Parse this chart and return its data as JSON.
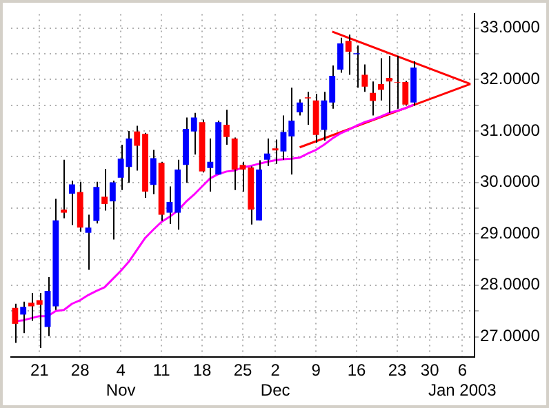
{
  "chart_data": {
    "type": "candlestick",
    "categories": [
      null,
      null,
      null,
      "21",
      null,
      null,
      null,
      null,
      "28",
      null,
      null,
      null,
      null,
      "4\nNov",
      null,
      null,
      null,
      null,
      "11",
      null,
      null,
      null,
      null,
      "18",
      null,
      null,
      null,
      null,
      "25",
      null,
      null,
      null,
      "2\nDec",
      null,
      null,
      null,
      null,
      "9",
      null,
      null,
      null,
      null,
      "16",
      null,
      null,
      null,
      null,
      "23",
      null,
      null,
      null,
      "30",
      null,
      null,
      null,
      "6\nJan 2003",
      null
    ],
    "ohlc": [
      [
        27.56,
        27.64,
        26.88,
        27.25
      ],
      [
        27.43,
        27.68,
        27.07,
        27.58
      ],
      [
        27.66,
        27.85,
        27.31,
        27.59
      ],
      [
        27.71,
        27.85,
        26.78,
        27.62
      ],
      [
        27.19,
        28.16,
        27.01,
        27.89
      ],
      [
        27.59,
        29.68,
        27.52,
        29.26
      ],
      [
        29.47,
        30.44,
        29.3,
        29.41
      ],
      [
        29.78,
        30.03,
        29.17,
        29.96
      ],
      [
        29.81,
        30.01,
        29.04,
        29.12
      ],
      [
        29.02,
        29.37,
        28.3,
        29.12
      ],
      [
        29.25,
        30.01,
        29.2,
        29.91
      ],
      [
        29.72,
        30.26,
        29.45,
        29.58
      ],
      [
        29.63,
        30.03,
        28.89,
        30.0
      ],
      [
        30.09,
        30.73,
        29.85,
        30.46
      ],
      [
        30.3,
        31.0,
        29.99,
        30.85
      ],
      [
        30.99,
        31.1,
        30.23,
        30.71
      ],
      [
        30.94,
        30.96,
        29.7,
        29.82
      ],
      [
        29.95,
        30.63,
        29.77,
        30.47
      ],
      [
        30.38,
        30.4,
        29.25,
        29.37
      ],
      [
        29.41,
        29.92,
        29.19,
        29.62
      ],
      [
        29.41,
        30.44,
        29.08,
        30.25
      ],
      [
        30.34,
        31.26,
        29.99,
        31.04
      ],
      [
        30.99,
        31.35,
        30.54,
        31.26
      ],
      [
        31.17,
        31.22,
        30.19,
        30.21
      ],
      [
        30.28,
        30.85,
        29.82,
        30.4
      ],
      [
        30.15,
        31.2,
        30.15,
        31.17
      ],
      [
        31.12,
        31.41,
        30.73,
        30.88
      ],
      [
        30.85,
        30.87,
        29.85,
        30.25
      ],
      [
        30.34,
        30.4,
        29.82,
        30.25
      ],
      [
        30.29,
        30.31,
        29.18,
        29.47
      ],
      [
        29.26,
        30.43,
        29.26,
        30.25
      ],
      [
        30.44,
        30.85,
        30.32,
        30.56
      ],
      [
        30.66,
        30.83,
        30.36,
        30.62
      ],
      [
        30.6,
        31.3,
        30.44,
        30.98
      ],
      [
        30.89,
        31.84,
        30.15,
        31.2
      ],
      [
        31.36,
        31.61,
        31.3,
        31.55
      ],
      [
        31.65,
        31.76,
        31.12,
        31.63
      ],
      [
        31.59,
        31.72,
        30.77,
        30.92
      ],
      [
        31.02,
        31.76,
        30.81,
        31.59
      ],
      [
        31.55,
        32.27,
        31.43,
        32.07
      ],
      [
        32.19,
        32.81,
        32.13,
        32.7
      ],
      [
        32.75,
        32.87,
        32.09,
        32.54
      ],
      [
        32.49,
        32.66,
        31.84,
        32.51
      ],
      [
        32.09,
        32.29,
        31.76,
        31.86
      ],
      [
        31.74,
        31.96,
        31.3,
        31.58
      ],
      [
        31.91,
        32.41,
        31.59,
        31.8
      ],
      [
        32.03,
        32.46,
        31.35,
        31.96
      ],
      [
        31.95,
        32.46,
        31.43,
        31.94
      ],
      [
        31.95,
        31.97,
        31.49,
        31.51
      ],
      [
        31.55,
        32.35,
        31.49,
        32.23
      ],
      null,
      null,
      null,
      null,
      null,
      null,
      null
    ],
    "colors": [
      "#ff0000",
      "#0000ff",
      "#ff0000",
      "#ff0000",
      "#0000ff",
      "#0000ff",
      "#ff0000",
      "#0000ff",
      "#ff0000",
      "#0000ff",
      "#0000ff",
      "#ff0000",
      "#0000ff",
      "#0000ff",
      "#0000ff",
      "#ff0000",
      "#ff0000",
      "#0000ff",
      "#ff0000",
      "#0000ff",
      "#0000ff",
      "#0000ff",
      "#0000ff",
      "#ff0000",
      "#0000ff",
      "#0000ff",
      "#ff0000",
      "#ff0000",
      "#ff0000",
      "#ff0000",
      "#0000ff",
      "#0000ff",
      "#ff0000",
      "#0000ff",
      "#0000ff",
      "#0000ff",
      "#ff0000",
      "#ff0000",
      "#0000ff",
      "#0000ff",
      "#0000ff",
      "#ff0000",
      "#0000ff",
      "#ff0000",
      "#ff0000",
      "#ff0000",
      "#ff0000",
      "#ff0000",
      "#ff0000",
      "#0000ff",
      null,
      null,
      null,
      null,
      null,
      null,
      null
    ],
    "series": [
      {
        "type": "line",
        "color": "#ff00ff",
        "values": [
          27.3,
          27.32,
          27.36,
          27.4,
          27.4,
          27.5,
          27.52,
          27.64,
          27.71,
          27.81,
          27.89,
          27.96,
          28.12,
          28.28,
          28.46,
          28.69,
          28.92,
          29.08,
          29.23,
          29.33,
          29.45,
          29.62,
          29.76,
          29.92,
          30.08,
          30.16,
          30.21,
          30.23,
          30.29,
          30.32,
          30.36,
          30.4,
          30.43,
          30.45,
          30.46,
          30.48,
          30.56,
          30.63,
          30.73,
          30.85,
          30.95,
          31.02,
          31.1,
          31.17,
          31.22,
          31.28,
          31.35,
          31.39,
          31.44,
          31.51,
          null,
          null,
          null,
          null,
          null,
          null,
          null
        ]
      },
      {
        "type": "line",
        "color": "#ff0000",
        "values": [
          null,
          null,
          null,
          null,
          null,
          null,
          null,
          null,
          null,
          null,
          null,
          null,
          null,
          null,
          null,
          null,
          null,
          null,
          null,
          null,
          null,
          null,
          null,
          null,
          null,
          null,
          null,
          null,
          null,
          null,
          null,
          null,
          null,
          null,
          null,
          null,
          null,
          null,
          null,
          32.93,
          null,
          null,
          null,
          null,
          null,
          null,
          null,
          null,
          null,
          null,
          null,
          null,
          null,
          null,
          null,
          null,
          31.91
        ]
      },
      {
        "type": "line",
        "color": "#ff0000",
        "values": [
          null,
          null,
          null,
          null,
          null,
          null,
          null,
          null,
          null,
          null,
          null,
          null,
          null,
          null,
          null,
          null,
          null,
          null,
          null,
          null,
          null,
          null,
          null,
          null,
          null,
          null,
          null,
          null,
          null,
          null,
          null,
          null,
          null,
          null,
          null,
          30.68,
          null,
          null,
          null,
          null,
          null,
          null,
          null,
          null,
          null,
          null,
          null,
          null,
          null,
          null,
          null,
          null,
          null,
          null,
          null,
          null,
          31.91
        ]
      }
    ],
    "ylim": [
      26.6,
      33.27
    ],
    "yticks": [
      {
        "value": 27,
        "label": "27.0000"
      },
      {
        "value": 27.5,
        "label": null
      },
      {
        "value": 28,
        "label": "28.0000"
      },
      {
        "value": 28.5,
        "label": null
      },
      {
        "value": 29,
        "label": "29.0000"
      },
      {
        "value": 29.5,
        "label": null
      },
      {
        "value": 30,
        "label": "30.0000"
      },
      {
        "value": 30.5,
        "label": null
      },
      {
        "value": 31,
        "label": "31.0000"
      },
      {
        "value": 31.5,
        "label": null
      },
      {
        "value": 32,
        "label": "32.0000"
      },
      {
        "value": 32.5,
        "label": null
      },
      {
        "value": 33,
        "label": "33.0000"
      }
    ],
    "grid": true,
    "legend": false,
    "marker": "none"
  }
}
